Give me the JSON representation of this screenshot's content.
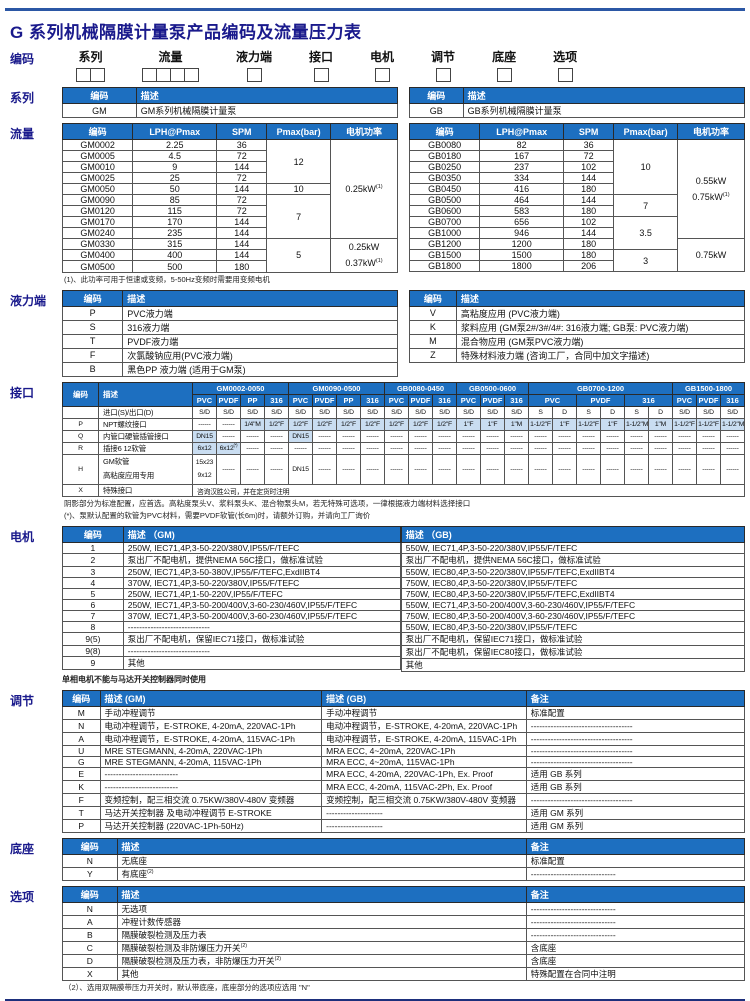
{
  "page": {
    "title": "G 系列机械隔膜计量泵产品编码及流量压力表"
  },
  "coding": {
    "label": "编码",
    "fields": [
      {
        "label": "系列",
        "boxes": 2
      },
      {
        "label": "流量",
        "boxes": 4
      },
      {
        "label": "液力端",
        "boxes": 1
      },
      {
        "label": "接口",
        "boxes": 1
      },
      {
        "label": "电机",
        "boxes": 1
      },
      {
        "label": "调节",
        "boxes": 1
      },
      {
        "label": "底座",
        "boxes": 1
      },
      {
        "label": "选项",
        "boxes": 1
      }
    ]
  },
  "series": {
    "label": "系列",
    "gm": {
      "colw": [
        "22%",
        "78%"
      ],
      "head": [
        [
          {
            "t": "编码"
          },
          {
            "t": "描述",
            "cls": "tl"
          }
        ]
      ],
      "leftCols": [
        2
      ],
      "body": [
        [
          "GM",
          "GM系列机械隔膜计量泵"
        ]
      ]
    },
    "gb": {
      "colw": [
        "16%",
        "84%"
      ],
      "head": [
        [
          {
            "t": "编码"
          },
          {
            "t": "描述",
            "cls": "tl"
          }
        ]
      ],
      "leftCols": [
        2
      ],
      "body": [
        [
          "GB",
          "GB系列机械隔膜计量泵"
        ]
      ]
    }
  },
  "flow": {
    "label": "流量",
    "gm": {
      "colw": [
        "21%",
        "25%",
        "15%",
        "19%",
        "20%"
      ],
      "head": [
        [
          "编码",
          "LPH@Pmax",
          "SPM",
          "Pmax(bar)",
          "电机功率"
        ]
      ],
      "body": [
        [
          "GM0002",
          "2.25",
          "36",
          {
            "t": "12",
            "rs": 4
          },
          {
            "t": "0.25kW",
            "sup": "(1)",
            "rs": 9
          }
        ],
        [
          "GM0005",
          "4.5",
          "72"
        ],
        [
          "GM0010",
          "9",
          "144"
        ],
        [
          "GM0025",
          "25",
          "72"
        ],
        [
          "GM0050",
          "50",
          "144",
          "10"
        ],
        [
          "GM0090",
          "85",
          "72",
          {
            "t": "7",
            "rs": 4
          }
        ],
        [
          "GM0120",
          "115",
          "72"
        ],
        [
          "GM0170",
          "170",
          "144"
        ],
        [
          "GM0240",
          "235",
          "144"
        ],
        [
          "GM0330",
          "315",
          "144",
          {
            "t": "5",
            "rs": 3
          },
          {
            "rs": 3,
            "lines": [
              {
                "t": "0.25kW"
              },
              {
                "t": "0.37kW",
                "sup": "(1)"
              }
            ]
          }
        ],
        [
          "GM0400",
          "400",
          "144"
        ],
        [
          "GM0500",
          "500",
          "180"
        ]
      ]
    },
    "gb": {
      "colw": [
        "21%",
        "25%",
        "15%",
        "19%",
        "20%"
      ],
      "head": [
        [
          "编码",
          "LPH@Pmax",
          "SPM",
          "Pmax(bar)",
          "电机功率"
        ]
      ],
      "body": [
        [
          "GB0080",
          "82",
          "36",
          {
            "t": "10",
            "rs": 5
          },
          {
            "rs": 9,
            "lines": [
              {
                "t": "0.55kW"
              },
              {
                "t": "0.75kW",
                "sup": "(1)"
              }
            ]
          }
        ],
        [
          "GB0180",
          "167",
          "72"
        ],
        [
          "GB0250",
          "237",
          "102"
        ],
        [
          "GB0350",
          "334",
          "144"
        ],
        [
          "GB0450",
          "416",
          "180"
        ],
        [
          "GB0500",
          "464",
          "144",
          {
            "t": "7",
            "rs": 2
          }
        ],
        [
          "GB0600",
          "583",
          "180"
        ],
        [
          "GB0700",
          "656",
          "102",
          {
            "t": "3.5",
            "rs": 3
          }
        ],
        [
          "GB1000",
          "946",
          "144"
        ],
        [
          "GB1200",
          "1200",
          "180",
          {
            "t": "0.75kW",
            "rs": 3
          }
        ],
        [
          "GB1500",
          "1500",
          "180",
          {
            "t": "3",
            "rs": 2
          }
        ],
        [
          "GB1800",
          "1800",
          "206"
        ]
      ]
    },
    "footnote": "(1)、此功率可用于恒速或变频，5-50Hz变频时需要用变频电机"
  },
  "hydraulic": {
    "label": "液力端",
    "left": {
      "colw": [
        "18%",
        "82%"
      ],
      "head": [
        [
          {
            "t": "编码"
          },
          {
            "t": "描述",
            "cls": "tl"
          }
        ]
      ],
      "leftCols": [
        2
      ],
      "body": [
        [
          "P",
          "PVC液力端"
        ],
        [
          "S",
          "316液力端"
        ],
        [
          "T",
          "PVDF液力端"
        ],
        [
          "F",
          "次氯酸钠应用(PVC液力端)"
        ],
        [
          "B",
          "黑色PP 液力端 (适用于GM泵)"
        ]
      ]
    },
    "right": {
      "colw": [
        "14%",
        "86%"
      ],
      "head": [
        [
          {
            "t": "编码"
          },
          {
            "t": "描述",
            "cls": "tl"
          }
        ]
      ],
      "leftCols": [
        2
      ],
      "body": [
        [
          "V",
          "高粘度应用 (PVC液力端)"
        ],
        [
          "K",
          "浆料应用 (GM泵2#/3#/4#: 316液力端; GB泵: PVC液力端)"
        ],
        [
          "M",
          "混合物应用 (GM泵PVC液力端)"
        ],
        [
          "Z",
          "特殊材料液力端 (咨询工厂，合同中加文字描述)"
        ]
      ]
    }
  },
  "interface": {
    "label": "接口",
    "table": {
      "colw": [
        "36px",
        "94px"
      ],
      "leftCols": [
        2
      ],
      "head": [
        [
          {
            "t": "编码",
            "rs": 2
          },
          {
            "t": "描述",
            "rs": 2,
            "cls": "tl"
          },
          {
            "t": "GM0002-0050",
            "cs": 4
          },
          {
            "t": "GM0090-0500",
            "cs": 4
          },
          {
            "t": "GB0080-0450",
            "cs": 3
          },
          {
            "t": "GB0500-0600",
            "cs": 3
          },
          {
            "t": "GB0700-1200",
            "cs": 6
          },
          {
            "t": "GB1500-1800",
            "cs": 3
          }
        ],
        [
          "PVC",
          "PVDF",
          "PP",
          "316",
          "PVC",
          "PVDF",
          "PP",
          "316",
          "PVC",
          "PVDF",
          "316",
          "PVC",
          "PVDF",
          "316",
          {
            "t": "PVC",
            "cs": 2
          },
          {
            "t": "PVDF",
            "cs": 2
          },
          {
            "t": "316",
            "cs": 2
          },
          "PVC",
          "PVDF",
          "316"
        ]
      ],
      "body": [
        [
          "",
          "进口(S)/出口(D)",
          "S/D",
          "S/D",
          "S/D",
          "S/D",
          "S/D",
          "S/D",
          "S/D",
          "S/D",
          "S/D",
          "S/D",
          "S/D",
          "S/D",
          "S/D",
          "S/D",
          "S",
          "D",
          "S",
          "D",
          "S",
          "D",
          "S/D",
          "S/D",
          "S/D"
        ],
        [
          "P",
          "NPT螺纹接口",
          "------",
          "------",
          {
            "t": "1/4\"M",
            "sh": 1
          },
          {
            "t": "1/2\"F",
            "sh": 1
          },
          {
            "t": "1/2\"F",
            "sh": 1
          },
          {
            "t": "1/2\"F",
            "sh": 1
          },
          {
            "t": "1/2\"F",
            "sh": 1
          },
          {
            "t": "1/2\"F",
            "sh": 1
          },
          {
            "t": "1/2\"F",
            "sh": 1
          },
          {
            "t": "1/2\"F",
            "sh": 1
          },
          {
            "t": "1/2\"F",
            "sh": 1
          },
          {
            "t": "1\"F",
            "sh": 1
          },
          {
            "t": "1\"F",
            "sh": 1
          },
          {
            "t": "1\"M",
            "sh": 1
          },
          {
            "t": "1-1/2\"F",
            "sh": 1
          },
          {
            "t": "1\"F",
            "sh": 1
          },
          {
            "t": "1-1/2\"F",
            "sh": 1
          },
          {
            "t": "1\"F",
            "sh": 1
          },
          {
            "t": "1-1/2\"M",
            "sh": 1
          },
          {
            "t": "1\"M",
            "sh": 1
          },
          {
            "t": "1-1/2\"F",
            "sh": 1
          },
          {
            "t": "1-1/2\"F",
            "sh": 1
          },
          {
            "t": "1-1/2\"M",
            "sh": 1
          }
        ],
        [
          "Q",
          "内管口硬管插管接口",
          {
            "t": "DN15",
            "sh": 1
          },
          "------",
          "------",
          "------",
          {
            "t": "DN15",
            "sh": 1
          },
          "------",
          "------",
          "------",
          "------",
          "------",
          "------",
          "------",
          "------",
          "------",
          "------",
          "------",
          "------",
          "------",
          "------",
          "------",
          "------",
          "------",
          "------"
        ],
        [
          "R",
          "插接6  12软管",
          {
            "t": "6x12",
            "sh": 1
          },
          {
            "t": "6x12",
            "sup": "(*)",
            "sh": 1
          },
          "------",
          "------",
          "------",
          "------",
          "------",
          "------",
          "------",
          "------",
          "------",
          "------",
          "------",
          "------",
          "------",
          "------",
          "------",
          "------",
          "------",
          "------",
          "------",
          "------",
          "------"
        ],
        [
          "H",
          {
            "lines": [
              "GM软管",
              "高粘度应用专用"
            ],
            "cls": "tl"
          },
          {
            "lines": [
              "15x23",
              "9x12"
            ]
          },
          "------",
          "------",
          "------",
          "DN15",
          "------",
          "------",
          "------",
          "------",
          "------",
          "------",
          "------",
          "------",
          "------",
          "------",
          "------",
          "------",
          "------",
          "------",
          "------",
          "------",
          "------",
          "------"
        ],
        [
          "X",
          "特殊接口",
          {
            "t": "咨询汉胜公司，并在定货时注明",
            "cs": 23,
            "cls": "tl"
          }
        ]
      ]
    },
    "footnotes": [
      "阴影部分为标准配置，应首选。高粘度泵头V、浆料泵头K、混合物泵头M，若无特殊可选项，一律根据液力端材料选择接口",
      "(*)、泵默认配置的软管为PVC材料，需要PVDF软管(长6m)时，请额外订购，并请向工厂询价"
    ]
  },
  "motor": {
    "label": "电机",
    "gm": {
      "colw": [
        "18%",
        "82%"
      ],
      "head": [
        [
          {
            "t": "编码"
          },
          {
            "t": "描述 （GM)",
            "cls": "tl"
          }
        ]
      ],
      "leftCols": [
        2
      ],
      "body": [
        [
          "1",
          "250W, IEC71,4P,3-50-220/380V,IP55/F/TEFC"
        ],
        [
          "2",
          "泵出厂不配电机，提供NEMA 56C接口，做标准试验"
        ],
        [
          "3",
          "250W, IEC71,4P,3-50-380V,IP55/F/TEFC,ExdIIBT4"
        ],
        [
          "4",
          "370W, IEC71,4P,3-50-220/380V,IP55/F/TEFC"
        ],
        [
          "5",
          "250W, IEC71,4P,1-50-220V,IP55/F/TEFC"
        ],
        [
          "6",
          "250W, IEC71,4P,3-50-200/400V,3-60-230/460V,IP55/F/TEFC"
        ],
        [
          "7",
          "370W, IEC71,4P,3-50-200/400V,3-60-230/460V,IP55/F/TEFC"
        ],
        [
          "8",
          "-----------------------------"
        ],
        [
          "9(5)",
          "泵出厂不配电机，保留IEC71接口，做标准试验"
        ],
        [
          "9(8)",
          "-----------------------------"
        ],
        [
          "9",
          "其他"
        ]
      ]
    },
    "gb": {
      "colw": [
        "100%"
      ],
      "head": [
        [
          {
            "t": "描述 （GB)",
            "cls": "tl"
          }
        ]
      ],
      "leftCols": [
        1
      ],
      "body": [
        [
          "550W, IEC71,4P,3-50-220/380V,IP55/F/TEFC"
        ],
        [
          "泵出厂不配电机，提供NEMA 56C接口，做标准试验"
        ],
        [
          "550W, IEC80,4P,3-50-220/380V,IP55/F/TEFC,ExdIIBT4"
        ],
        [
          "750W, IEC80,4P,3-50-220/380V,IP55/F/TEFC"
        ],
        [
          "750W, IEC80,4P,3-50-220/380V,IP55/F/TEFC,ExdIIBT4"
        ],
        [
          "550W, IEC71,4P,3-50-200/400V,3-60-230/460V,IP55/F/TEFC"
        ],
        [
          "750W, IEC80,4P,3-50-200/400V,3-60-230/460V,IP55/F/TEFC"
        ],
        [
          "550W, IEC80,4P,3-50-220/380V,IP55/F/TEFC"
        ],
        [
          "泵出厂不配电机，保留IEC71接口，做标准试验"
        ],
        [
          "泵出厂不配电机，保留IEC80接口，做标准试验"
        ],
        [
          "其他"
        ]
      ]
    },
    "footnote": "单相电机不能与马达开关控制器同时使用"
  },
  "adjust": {
    "label": "调节",
    "table": {
      "colw": [
        "5.5%",
        "32.5%",
        "30%",
        "32%"
      ],
      "head": [
        [
          {
            "t": "编码"
          },
          {
            "t": "描述 (GM)",
            "cls": "tl"
          },
          {
            "t": "描述 (GB)",
            "cls": "tl"
          },
          {
            "t": "备注",
            "cls": "tl"
          }
        ]
      ],
      "leftCols": [
        2,
        3,
        4
      ],
      "body": [
        [
          "M",
          "手动冲程调节",
          "手动冲程调节",
          "标准配置"
        ],
        [
          "N",
          "电动冲程调节，E-STROKE, 4-20mA, 220VAC-1Ph",
          "电动冲程调节，E-STROKE, 4-20mA, 220VAC-1Ph",
          "------------------------------------"
        ],
        [
          "A",
          "电动冲程调节，E-STROKE, 4-20mA, 115VAC-1Ph",
          "电动冲程调节，E-STROKE, 4-20mA, 115VAC-1Ph",
          "------------------------------------"
        ],
        [
          "U",
          "MRE STEGMANN, 4-20mA, 220VAC-1Ph",
          "MRA ECC, 4~20mA, 220VAC-1Ph",
          "------------------------------------"
        ],
        [
          "G",
          "MRE STEGMANN, 4-20mA, 115VAC-1Ph",
          "MRA ECC, 4~20mA, 115VAC-1Ph",
          "------------------------------------"
        ],
        [
          "E",
          "--------------------------",
          "MRA ECC, 4-20mA, 220VAC-1Ph, Ex. Proof",
          "适用 GB 系列"
        ],
        [
          "K",
          "--------------------------",
          "MRA ECC, 4-20mA, 115VAC-2Ph, Ex. Proof",
          "适用 GB 系列"
        ],
        [
          "F",
          "变频控制，配三相交流 0.75KW/380V-480V 变频器",
          "变频控制，配三相交流 0.75KW/380V-480V 变频器",
          "------------------------------------"
        ],
        [
          "T",
          "马达开关控制器 及电动冲程调节 E-STROKE",
          "--------------------",
          "适用 GM 系列"
        ],
        [
          "P",
          "马达开关控制器 (220VAC-1Ph-50Hz)",
          "--------------------",
          "适用 GM 系列"
        ]
      ]
    }
  },
  "base": {
    "label": "底座",
    "table": {
      "colw": [
        "8%",
        "60%",
        "32%"
      ],
      "head": [
        [
          {
            "t": "编码"
          },
          {
            "t": "描述",
            "cls": "tl"
          },
          {
            "t": "备注",
            "cls": "tl"
          }
        ]
      ],
      "leftCols": [
        2,
        3
      ],
      "body": [
        [
          "N",
          "无底座",
          "标准配置"
        ],
        [
          "Y",
          {
            "t": "有底座",
            "sup": "(2)"
          },
          "------------------------------"
        ]
      ]
    }
  },
  "options": {
    "label": "选项",
    "table": {
      "colw": [
        "8%",
        "60%",
        "32%"
      ],
      "head": [
        [
          {
            "t": "编码"
          },
          {
            "t": "描述",
            "cls": "tl"
          },
          {
            "t": "备注",
            "cls": "tl"
          }
        ]
      ],
      "leftCols": [
        2,
        3
      ],
      "body": [
        [
          "N",
          "无选项",
          "------------------------------"
        ],
        [
          "A",
          "冲程计数传感器",
          "------------------------------"
        ],
        [
          "B",
          "隔膜破裂检测及压力表",
          "------------------------------"
        ],
        [
          "C",
          {
            "t": "隔膜破裂检测及非防爆压力开关",
            "sup": "(2)"
          },
          "含底座"
        ],
        [
          "D",
          {
            "t": "隔膜破裂检测及压力表，非防爆压力开关",
            "sup": "(2)"
          },
          "含底座"
        ],
        [
          "X",
          "其他",
          "特殊配置在合同中注明"
        ]
      ]
    },
    "footnote": "（2）、选用双隔膜带压力开关时，默认带底座，底座部分的选项应选用 \"N\""
  }
}
